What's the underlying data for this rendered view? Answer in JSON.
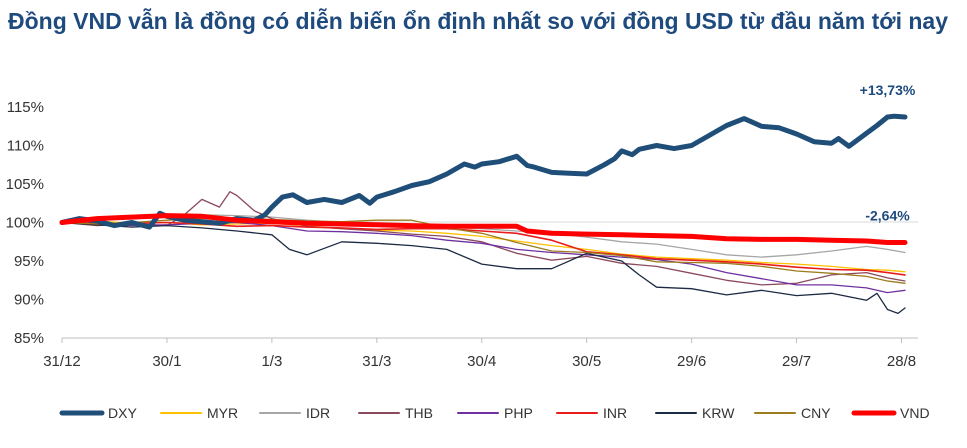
{
  "chart_data": {
    "type": "line",
    "title": "Đồng VND vẫn là đồng có diễn biến ổn định nhất so với đồng USD từ đầu năm tới nay",
    "xlabel": "",
    "ylabel": "",
    "ylim": [
      85,
      115
    ],
    "yticks": [
      85,
      90,
      95,
      100,
      105,
      110,
      115
    ],
    "ytick_labels": [
      "85%",
      "90%",
      "95%",
      "100%",
      "105%",
      "110%",
      "115%"
    ],
    "xlim": [
      0,
      241
    ],
    "xticks": [
      0,
      30,
      60,
      90,
      120,
      150,
      180,
      210,
      240
    ],
    "xtick_labels": [
      "31/12",
      "30/1",
      "1/3",
      "31/3",
      "30/4",
      "30/5",
      "29/6",
      "29/7",
      "28/8"
    ],
    "legend_position": "bottom",
    "annotations": [
      {
        "series": "DXY",
        "text": "+13,73%",
        "x": 236,
        "y": 113.7
      },
      {
        "series": "VND",
        "text": "-2,64%",
        "x": 236,
        "y": 97.4
      }
    ],
    "series": [
      {
        "name": "DXY",
        "color": "#1f4e79",
        "width": 5,
        "x": [
          0,
          5,
          10,
          15,
          20,
          25,
          28,
          30,
          35,
          40,
          45,
          50,
          55,
          58,
          60,
          63,
          66,
          70,
          75,
          80,
          85,
          88,
          90,
          95,
          100,
          105,
          110,
          115,
          118,
          120,
          125,
          130,
          133,
          135,
          140,
          145,
          150,
          155,
          158,
          160,
          163,
          165,
          170,
          175,
          180,
          185,
          190,
          195,
          200,
          205,
          210,
          215,
          220,
          222,
          225,
          230,
          233,
          236,
          238,
          241
        ],
        "y": [
          100,
          100.5,
          100.2,
          99.6,
          100,
          99.4,
          101.2,
          100.8,
          100.3,
          100.1,
          99.9,
          100.5,
          100.3,
          101,
          102,
          103.3,
          103.6,
          102.6,
          103,
          102.6,
          103.5,
          102.5,
          103.3,
          104,
          104.8,
          105.3,
          106.3,
          107.6,
          107.2,
          107.6,
          107.9,
          108.6,
          107.4,
          107.2,
          106.5,
          106.4,
          106.3,
          107.5,
          108.3,
          109.3,
          108.8,
          109.5,
          110,
          109.6,
          110,
          111.3,
          112.6,
          113.5,
          112.5,
          112.3,
          111.5,
          110.5,
          110.3,
          110.9,
          109.9,
          111.6,
          112.6,
          113.7,
          113.8,
          113.7
        ]
      },
      {
        "name": "MYR",
        "color": "#ffc000",
        "width": 1.3,
        "x": [
          0,
          10,
          20,
          30,
          40,
          50,
          60,
          70,
          80,
          90,
          100,
          110,
          120,
          130,
          140,
          150,
          160,
          170,
          180,
          190,
          200,
          210,
          220,
          230,
          236,
          241
        ],
        "y": [
          100,
          100.2,
          99.9,
          100,
          99.7,
          99.8,
          99.9,
          99.6,
          99.2,
          99,
          98.9,
          98.6,
          98.2,
          97.6,
          97,
          96.5,
          95.9,
          95.5,
          95.3,
          95.1,
          94.8,
          94.6,
          94.3,
          93.9,
          93.8,
          93.6
        ]
      },
      {
        "name": "IDR",
        "color": "#a6a6a6",
        "width": 1.3,
        "x": [
          0,
          10,
          20,
          30,
          40,
          50,
          60,
          70,
          80,
          90,
          100,
          110,
          120,
          130,
          140,
          150,
          160,
          170,
          180,
          190,
          200,
          210,
          220,
          230,
          236,
          241
        ],
        "y": [
          100,
          100.3,
          100.5,
          100.8,
          101,
          100.9,
          100.7,
          100.3,
          100,
          99.8,
          99.8,
          99.4,
          99.2,
          98.9,
          98.6,
          98.1,
          97.5,
          97.2,
          96.5,
          95.8,
          95.5,
          95.8,
          96.3,
          96.9,
          96.5,
          96.1
        ]
      },
      {
        "name": "THB",
        "color": "#8b4a5c",
        "width": 1.3,
        "x": [
          0,
          10,
          20,
          30,
          35,
          40,
          45,
          48,
          50,
          55,
          60,
          70,
          80,
          90,
          100,
          110,
          120,
          130,
          140,
          150,
          160,
          170,
          180,
          190,
          200,
          210,
          220,
          230,
          236,
          241
        ],
        "y": [
          100,
          99.6,
          99.9,
          99.6,
          101,
          103,
          102,
          104,
          103.5,
          101.5,
          100.5,
          99.5,
          99.2,
          98.9,
          98.5,
          98.2,
          97.5,
          96,
          95.1,
          95.6,
          94.7,
          94.3,
          93.4,
          92.5,
          91.9,
          92.1,
          93.2,
          93.5,
          92.8,
          92.4
        ]
      },
      {
        "name": "PHP",
        "color": "#7030a0",
        "width": 1.3,
        "x": [
          0,
          10,
          20,
          30,
          40,
          50,
          60,
          70,
          80,
          90,
          100,
          110,
          120,
          130,
          140,
          150,
          160,
          170,
          180,
          190,
          200,
          210,
          220,
          230,
          236,
          241
        ],
        "y": [
          100,
          99.8,
          99.6,
          99.7,
          99.9,
          100,
          99.6,
          98.9,
          98.8,
          98.6,
          98.3,
          97.7,
          97.3,
          96.5,
          96.1,
          95.8,
          95.5,
          95.2,
          94.6,
          93.5,
          92.7,
          91.9,
          91.9,
          91.5,
          90.9,
          91.2
        ]
      },
      {
        "name": "INR",
        "color": "#e81c1c",
        "width": 1.6,
        "x": [
          0,
          10,
          20,
          30,
          40,
          50,
          60,
          70,
          80,
          90,
          100,
          110,
          120,
          130,
          140,
          150,
          160,
          170,
          180,
          190,
          200,
          210,
          220,
          230,
          236,
          241
        ],
        "y": [
          100,
          99.9,
          99.9,
          100,
          99.8,
          99.5,
          99.6,
          99.4,
          99.3,
          99.1,
          99.2,
          99.2,
          98.9,
          98.6,
          97.7,
          96.2,
          95.8,
          95.3,
          95.1,
          94.9,
          94.6,
          94.2,
          93.9,
          93.8,
          93.5,
          93.2
        ]
      },
      {
        "name": "KRW",
        "color": "#1d2a44",
        "width": 1.3,
        "x": [
          0,
          10,
          20,
          30,
          40,
          50,
          60,
          65,
          70,
          80,
          90,
          100,
          110,
          120,
          130,
          140,
          150,
          160,
          165,
          170,
          180,
          190,
          200,
          210,
          220,
          230,
          233,
          236,
          239,
          241
        ],
        "y": [
          100,
          99.7,
          99.4,
          99.6,
          99.3,
          98.9,
          98.4,
          96.5,
          95.8,
          97.5,
          97.3,
          97,
          96.5,
          94.6,
          94,
          94,
          96,
          95,
          93.2,
          91.6,
          91.4,
          90.6,
          91.2,
          90.5,
          90.8,
          89.9,
          90.8,
          88.7,
          88.2,
          88.9
        ]
      },
      {
        "name": "CNY",
        "color": "#9c7c1f",
        "width": 1.3,
        "x": [
          0,
          10,
          20,
          30,
          40,
          50,
          60,
          70,
          80,
          90,
          100,
          110,
          120,
          130,
          140,
          150,
          160,
          170,
          180,
          190,
          200,
          210,
          220,
          230,
          236,
          241
        ],
        "y": [
          100,
          99.8,
          100,
          100.3,
          100.5,
          100.6,
          100.4,
          100.2,
          100.1,
          100.3,
          100.3,
          99.3,
          98.6,
          97.4,
          96.3,
          96.1,
          95.7,
          94.9,
          94.8,
          94.7,
          94.3,
          93.7,
          93.4,
          93,
          92.4,
          92.1
        ]
      },
      {
        "name": "VND",
        "color": "#ff0000",
        "width": 5,
        "x": [
          0,
          10,
          20,
          30,
          40,
          50,
          60,
          70,
          80,
          90,
          100,
          110,
          120,
          130,
          133,
          140,
          150,
          160,
          170,
          180,
          190,
          200,
          210,
          220,
          230,
          236,
          241
        ],
        "y": [
          100,
          100.5,
          100.7,
          100.9,
          100.8,
          100.3,
          100.1,
          99.9,
          99.8,
          99.7,
          99.6,
          99.5,
          99.5,
          99.5,
          98.9,
          98.6,
          98.5,
          98.4,
          98.3,
          98.2,
          97.9,
          97.8,
          97.8,
          97.7,
          97.6,
          97.4,
          97.4
        ]
      }
    ]
  }
}
